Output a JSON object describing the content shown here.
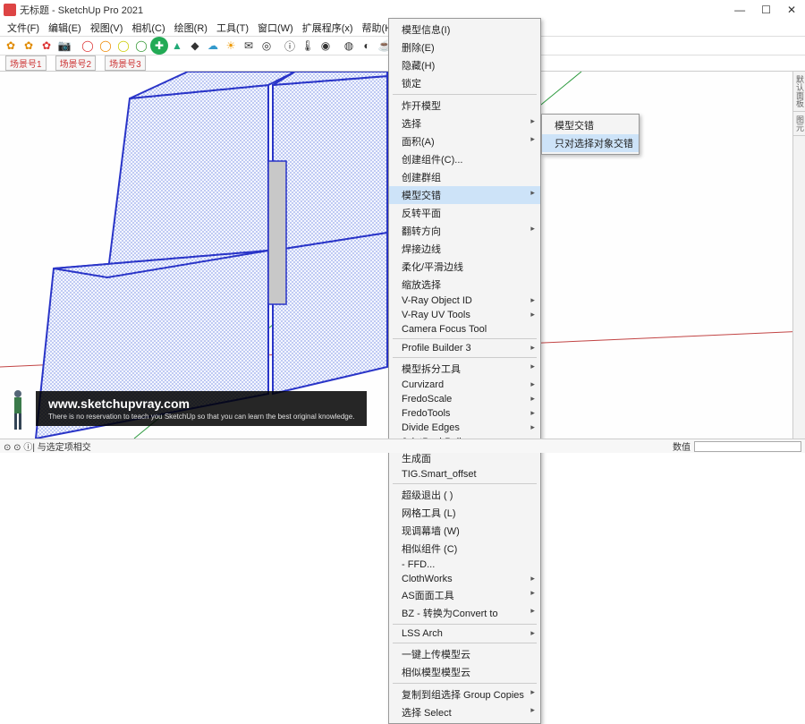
{
  "window": {
    "title": "无标题 - SketchUp Pro 2021",
    "controls": {
      "min": "—",
      "max": "☐",
      "close": "✕"
    }
  },
  "menubar": [
    "文件(F)",
    "编辑(E)",
    "视图(V)",
    "相机(C)",
    "绘图(R)",
    "工具(T)",
    "窗口(W)",
    "扩展程序(x)",
    "帮助(H)"
  ],
  "toolbar_icons": [
    {
      "n": "gear1",
      "g": "✿",
      "c": "#e08a00"
    },
    {
      "n": "gear2",
      "g": "✿",
      "c": "#e08a00"
    },
    {
      "n": "gear3",
      "g": "✿",
      "c": "#d33"
    },
    {
      "n": "camera",
      "g": "📷",
      "c": "#333"
    },
    {
      "n": "sep",
      "g": "",
      "c": ""
    },
    {
      "n": "ring-red",
      "g": "◯",
      "c": "#d33"
    },
    {
      "n": "ring-orange",
      "g": "◯",
      "c": "#e80"
    },
    {
      "n": "ring-yellow",
      "g": "◯",
      "c": "#cc0"
    },
    {
      "n": "ring-green",
      "g": "◯",
      "c": "#393"
    },
    {
      "n": "plus",
      "g": "✚",
      "c": "#fff"
    },
    {
      "n": "tree",
      "g": "▲",
      "c": "#2a7"
    },
    {
      "n": "check",
      "g": "◆",
      "c": "#333"
    },
    {
      "n": "cloud",
      "g": "☁",
      "c": "#39c"
    },
    {
      "n": "sun",
      "g": "☀",
      "c": "#e90"
    },
    {
      "n": "mail",
      "g": "✉",
      "c": "#333"
    },
    {
      "n": "ring2",
      "g": "◎",
      "c": "#333"
    },
    {
      "n": "sep2",
      "g": "",
      "c": ""
    },
    {
      "n": "info",
      "g": "ⓘ",
      "c": "#333"
    },
    {
      "n": "therm",
      "g": "🌡",
      "c": "#333"
    },
    {
      "n": "droplet",
      "g": "◉",
      "c": "#333"
    },
    {
      "n": "sep3",
      "g": "",
      "c": ""
    },
    {
      "n": "globe",
      "g": "◍",
      "c": "#333"
    },
    {
      "n": "palette",
      "g": "◐",
      "c": "#333"
    },
    {
      "n": "tea",
      "g": "☕",
      "c": "#333"
    }
  ],
  "scene_tabs": [
    "场景号1",
    "场景号2",
    "场景号3"
  ],
  "right_tabs": [
    "默认面板",
    "图元"
  ],
  "status": {
    "left_icons": [
      "⊙",
      "⊙",
      "ⓘ"
    ],
    "text": "| 与选定项相交",
    "right_label": "数值"
  },
  "watermark": {
    "url": "www.sketchupvray.com",
    "sub": "There is no reservation to teach you SketchUp so that you can learn the best original knowledge."
  },
  "context_menu": [
    {
      "t": "模型信息(I)"
    },
    {
      "t": "删除(E)"
    },
    {
      "t": "隐藏(H)"
    },
    {
      "t": "锁定"
    },
    {
      "sep": true
    },
    {
      "t": "炸开模型"
    },
    {
      "t": "选择",
      "a": true
    },
    {
      "t": "面积(A)",
      "a": true
    },
    {
      "t": "创建组件(C)..."
    },
    {
      "t": "创建群组"
    },
    {
      "t": "模型交错",
      "a": true,
      "hl": true
    },
    {
      "t": "反转平面"
    },
    {
      "t": "翻转方向",
      "a": true
    },
    {
      "t": "焊接边线"
    },
    {
      "t": "柔化/平滑边线"
    },
    {
      "t": "缩放选择"
    },
    {
      "t": "V-Ray Object ID",
      "a": true
    },
    {
      "t": "V-Ray UV Tools",
      "a": true
    },
    {
      "t": "Camera Focus Tool"
    },
    {
      "sep": true
    },
    {
      "t": "Profile Builder 3",
      "a": true
    },
    {
      "sep": true
    },
    {
      "t": "模型拆分工具",
      "a": true
    },
    {
      "t": "Curvizard",
      "a": true
    },
    {
      "t": "FredoScale",
      "a": true
    },
    {
      "t": "FredoTools",
      "a": true
    },
    {
      "t": "Divide Edges",
      "a": true
    },
    {
      "t": "JointPushPull",
      "a": true
    },
    {
      "t": "生成面"
    },
    {
      "t": "TIG.Smart_offset"
    },
    {
      "sep": true
    },
    {
      "t": "超级退出 ( )"
    },
    {
      "t": "网格工具  (L)"
    },
    {
      "t": "现调幕墙  (W)"
    },
    {
      "t": "相似组件  (C)"
    },
    {
      "t": "- FFD..."
    },
    {
      "t": "ClothWorks",
      "a": true
    },
    {
      "t": "AS面面工具",
      "a": true
    },
    {
      "t": "BZ - 转换为Convert to",
      "a": true
    },
    {
      "sep": true
    },
    {
      "t": "LSS Arch",
      "a": true
    },
    {
      "sep": true
    },
    {
      "t": "一键上传模型云"
    },
    {
      "t": "相似模型模型云"
    },
    {
      "sep": true
    },
    {
      "t": "复制到组选择 Group Copies",
      "a": true
    },
    {
      "t": "选择 Select",
      "a": true
    }
  ],
  "submenu": [
    {
      "t": "模型交错"
    },
    {
      "t": "只对选择对象交错",
      "hl": true
    }
  ],
  "model": {
    "hatch_color": "#3b5bd6",
    "hatch_bg": "#eef",
    "edge": "#2a35c8",
    "wall_fill": "#8c8c8c",
    "floor_fill": "#c9c9c9",
    "axis_green": "#2d9a3f",
    "axis_red": "#c24545",
    "axis_blue": "#3355dd"
  }
}
